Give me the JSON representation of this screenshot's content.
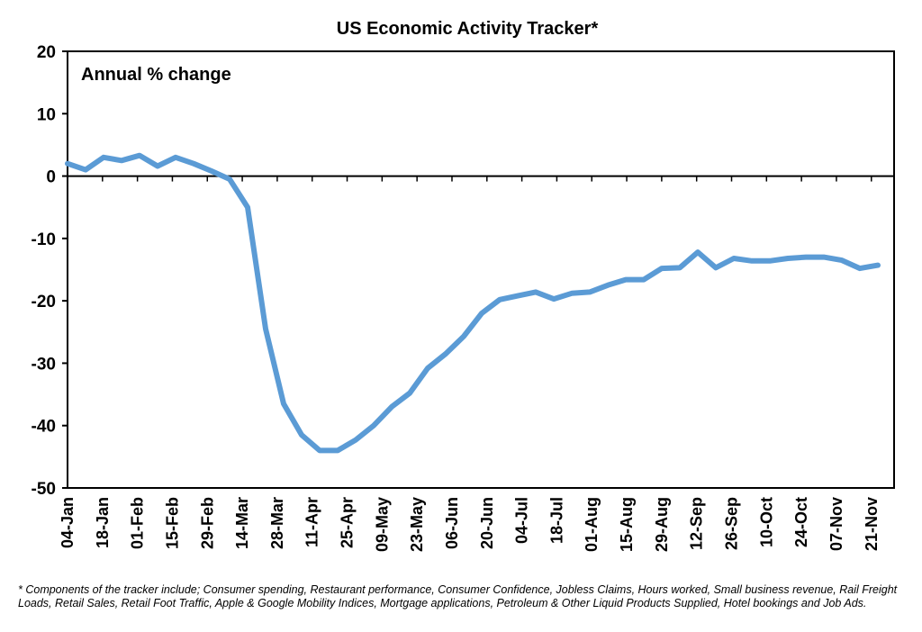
{
  "chart_data": {
    "type": "line",
    "title": "US Economic Activity Tracker*",
    "subtitle": "Annual % change",
    "xlabel": "",
    "ylabel": "",
    "ylim": [
      -50,
      20
    ],
    "yticks": [
      20,
      10,
      0,
      -10,
      -20,
      -30,
      -40,
      -50
    ],
    "xtick_labels": [
      "04-Jan",
      "18-Jan",
      "01-Feb",
      "15-Feb",
      "29-Feb",
      "14-Mar",
      "28-Mar",
      "11-Apr",
      "25-Apr",
      "09-May",
      "23-May",
      "06-Jun",
      "20-Jun",
      "04-Jul",
      "18-Jul",
      "01-Aug",
      "15-Aug",
      "29-Aug",
      "12-Sep",
      "26-Sep",
      "10-Oct",
      "24-Oct",
      "07-Nov",
      "21-Nov"
    ],
    "grid": false,
    "series": [
      {
        "color": "#5B9BD5",
        "values": [
          2.0,
          1.0,
          3.0,
          2.5,
          3.3,
          1.6,
          3.0,
          2.0,
          0.8,
          -0.5,
          -5.0,
          -24.5,
          -36.5,
          -41.5,
          -44.0,
          -44.0,
          -42.3,
          -40.0,
          -37.0,
          -34.8,
          -30.8,
          -28.5,
          -25.7,
          -22.0,
          -19.8,
          -19.2,
          -18.6,
          -19.7,
          -18.8,
          -18.6,
          -17.5,
          -16.6,
          -16.6,
          -14.8,
          -14.7,
          -12.2,
          -14.7,
          -13.2,
          -13.6,
          -13.6,
          -13.2,
          -13.0,
          -13.0,
          -13.5,
          -14.8,
          -14.3
        ]
      }
    ]
  },
  "footnote": "* Components of the tracker include; Consumer spending, Restaurant performance, Consumer Confidence, Jobless Claims, Hours worked, Small business revenue, Rail Freight Loads, Retail Sales, Retail Foot Traffic, Apple & Google Mobility Indices, Mortgage applications, Petroleum & Other Liquid Products Supplied, Hotel bookings and Job Ads."
}
